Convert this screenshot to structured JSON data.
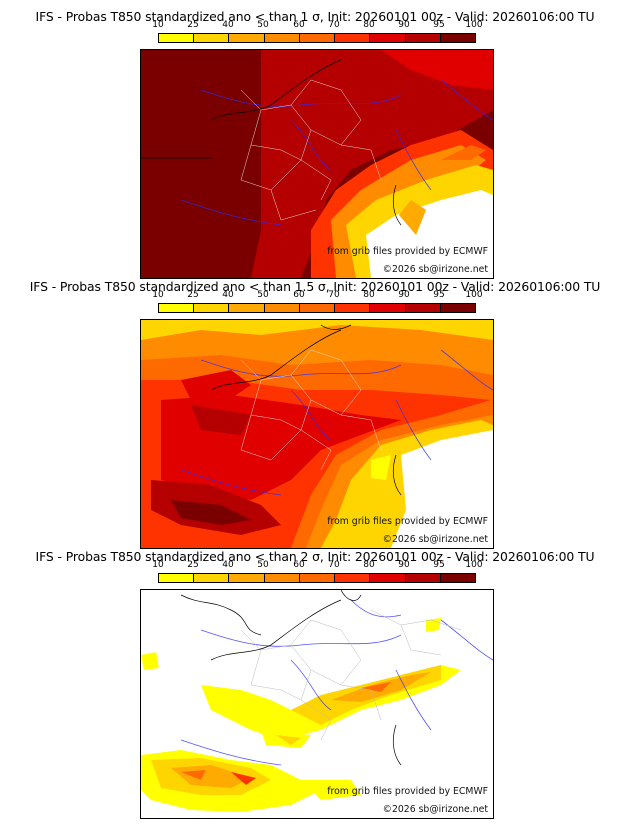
{
  "panels": [
    {
      "title": "IFS - Probas T850  standardized ano < than 1 σ, Init: 20260101 00z - Valid: 20260106:00 TU",
      "credit_source": "from grib files provided by ECMWF",
      "credit_copyright": "©2026 sb@irizone.net"
    },
    {
      "title": "IFS - Probas T850  standardized ano < than 1.5 σ, Init: 20260101 00z - Valid: 20260106:00 TU",
      "credit_source": "from grib files provided by ECMWF",
      "credit_copyright": "©2026 sb@irizone.net"
    },
    {
      "title": "IFS - Probas T850  standardized ano < than 2 σ, Init: 20260101 00z - Valid: 20260106:00 TU",
      "credit_source": "from grib files provided by ECMWF",
      "credit_copyright": "©2026 sb@irizone.net"
    }
  ],
  "legend": {
    "ticks": [
      "10",
      "25",
      "40",
      "50",
      "60",
      "70",
      "80",
      "90",
      "95",
      "100"
    ],
    "colors": [
      "#ffff00",
      "#ffd500",
      "#ffaa00",
      "#ff8c00",
      "#ff6a00",
      "#ff3300",
      "#e00000",
      "#b40000",
      "#7a0000"
    ]
  }
}
